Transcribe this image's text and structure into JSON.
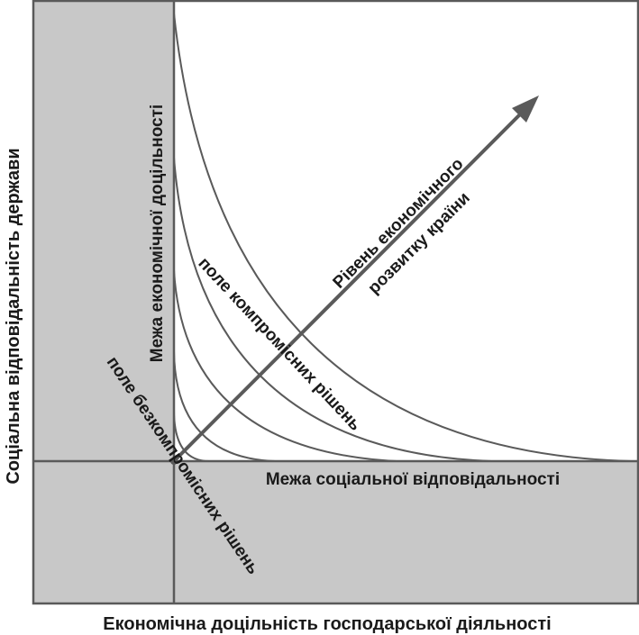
{
  "diagram": {
    "x_axis_label": "Економічна доцільність господарської діяльності",
    "y_axis_label": "Соціальна відповідальність держави",
    "economic_boundary_label": "Межа економічної доцільності",
    "social_boundary_label": "Межа соціальної відповідальності",
    "compromise_field_label": "поле компромісних рішень",
    "non_compromise_field_label": "поле безкомпромісних рішень",
    "development_arrow_label_line1": "Рівень економічного",
    "development_arrow_label_line2": "розвитку країни",
    "colors": {
      "shaded_area": "#c8c8c8",
      "lines": "#5a5a5a",
      "text": "#1a1a1a",
      "background": "#ffffff"
    }
  }
}
